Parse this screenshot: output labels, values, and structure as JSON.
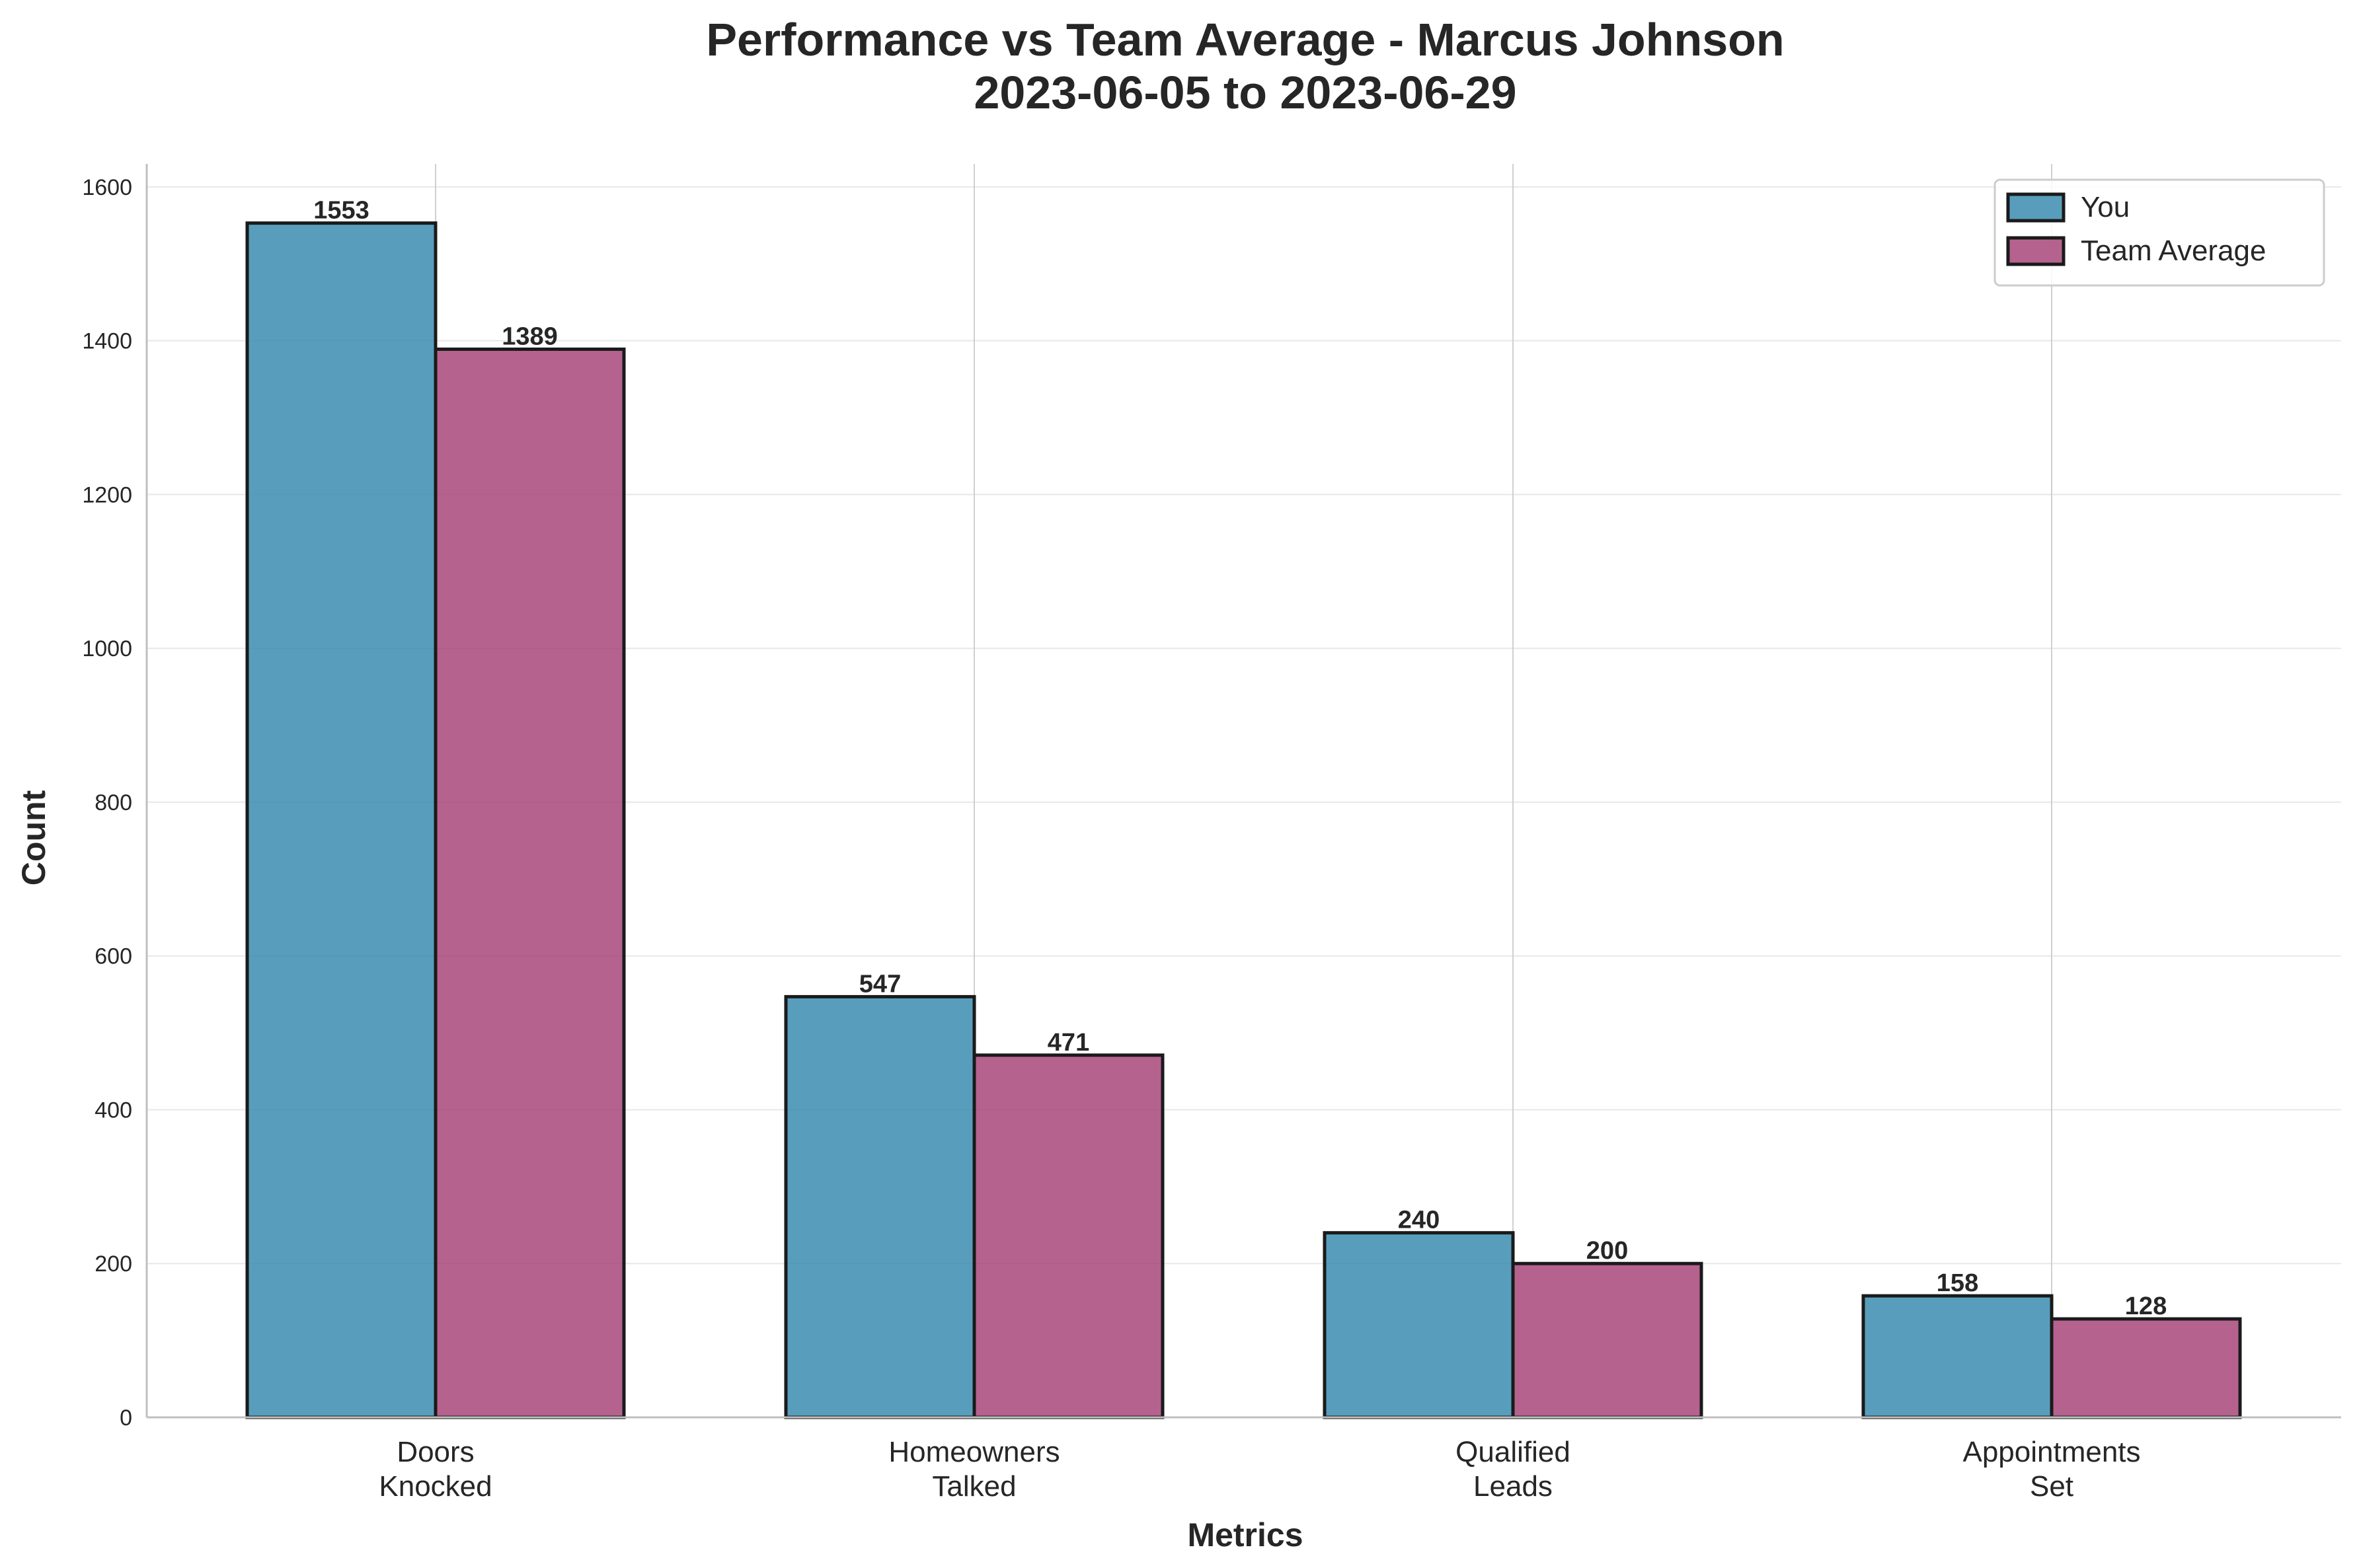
{
  "chart_data": {
    "type": "bar",
    "title": "Performance vs Team Average - Marcus Johnson",
    "subtitle": "2023-06-05 to 2023-06-29",
    "xlabel": "Metrics",
    "ylabel": "Count",
    "categories": [
      [
        "Doors",
        "Knocked"
      ],
      [
        "Homeowners",
        "Talked"
      ],
      [
        "Qualified",
        "Leads"
      ],
      [
        "Appointments",
        "Set"
      ]
    ],
    "series": [
      {
        "name": "You",
        "values": [
          1553,
          547,
          240,
          158
        ],
        "color": "#2E86AB"
      },
      {
        "name": "Team Average",
        "values": [
          1389,
          471,
          200,
          128
        ],
        "color": "#A23B72"
      }
    ],
    "ylim": [
      0,
      1630
    ],
    "yticks": [
      0,
      200,
      400,
      600,
      800,
      1000,
      1200,
      1400,
      1600
    ],
    "grid": true,
    "legend_position": "top-right"
  }
}
